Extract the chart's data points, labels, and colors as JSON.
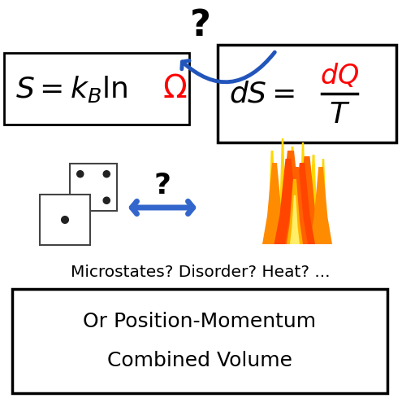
{
  "bg_color": "#ffffff",
  "box1_omega_color": "#ff0000",
  "box2_dQ_color": "#ff0000",
  "arrow_color": "#2255bb",
  "horiz_arrow_color": "#3366cc",
  "text_microstates": "Microstates? Disorder? Heat? ...",
  "text_box_line1": "Or Position-Momentum",
  "text_box_line2": "Combined Volume",
  "box_border_color": "#000000",
  "box_fill_color": "#ffffff",
  "figsize": [
    4.95,
    5.0
  ],
  "dpi": 100
}
